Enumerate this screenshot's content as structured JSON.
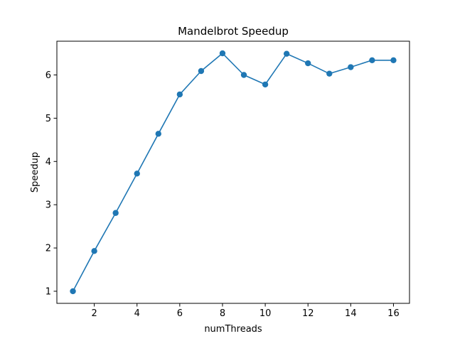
{
  "chart_data": {
    "type": "line",
    "title": "Mandelbrot Speedup",
    "xlabel": "numThreads",
    "ylabel": "Speedup",
    "x": [
      1,
      2,
      3,
      4,
      5,
      6,
      7,
      8,
      9,
      10,
      11,
      12,
      13,
      14,
      15,
      16
    ],
    "series": [
      {
        "values": [
          1.0,
          1.93,
          2.81,
          3.72,
          4.64,
          5.55,
          6.09,
          6.5,
          6.0,
          5.78,
          6.49,
          6.27,
          6.03,
          6.18,
          6.34,
          6.34
        ],
        "color": "#1f77b4",
        "marker": "circle"
      }
    ],
    "xticks": [
      2,
      4,
      6,
      8,
      10,
      12,
      14,
      16
    ],
    "yticks": [
      1,
      2,
      3,
      4,
      5,
      6
    ],
    "xlim": [
      0.25,
      16.75
    ],
    "ylim": [
      0.72,
      6.78
    ],
    "grid": false
  }
}
